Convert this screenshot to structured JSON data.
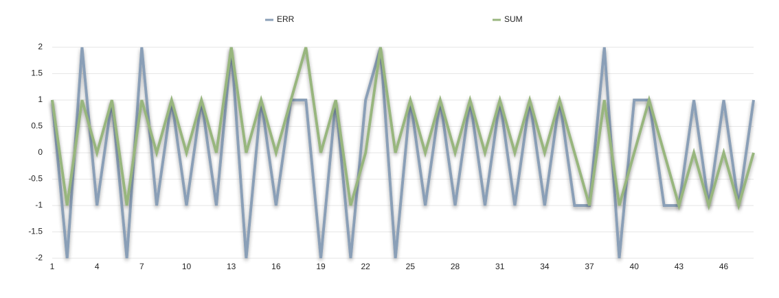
{
  "chart_data": {
    "type": "line",
    "x": [
      1,
      2,
      3,
      4,
      5,
      6,
      7,
      8,
      9,
      10,
      11,
      12,
      13,
      14,
      15,
      16,
      17,
      18,
      19,
      20,
      21,
      22,
      23,
      24,
      25,
      26,
      27,
      28,
      29,
      30,
      31,
      32,
      33,
      34,
      35,
      36,
      37,
      38,
      39,
      40,
      41,
      42,
      43,
      44,
      45,
      46,
      47,
      48
    ],
    "series": [
      {
        "name": "ERR",
        "color": "#8a9fb7",
        "values": [
          1,
          -2,
          2,
          -1,
          1,
          -2,
          2,
          -1,
          1,
          -1,
          1,
          -1,
          2,
          -2,
          1,
          -1,
          1,
          1,
          -2,
          1,
          -2,
          1,
          2,
          -2,
          1,
          -1,
          1,
          -1,
          1,
          -1,
          1,
          -1,
          1,
          -1,
          1,
          -1,
          -1,
          2,
          -2,
          1,
          1,
          -1,
          -1,
          1,
          -1,
          1,
          -1,
          1
        ]
      },
      {
        "name": "SUM",
        "color": "#98b67e",
        "values": [
          1,
          -1,
          1,
          0,
          1,
          -1,
          1,
          0,
          1,
          0,
          1,
          0,
          2,
          0,
          1,
          0,
          1,
          2,
          0,
          1,
          -1,
          0,
          2,
          0,
          1,
          0,
          1,
          0,
          1,
          0,
          1,
          0,
          1,
          0,
          1,
          0,
          -1,
          1,
          -1,
          0,
          1,
          0,
          -1,
          0,
          -1,
          0,
          -1,
          0
        ]
      }
    ],
    "xlim": [
      1,
      48
    ],
    "xticks": [
      1,
      4,
      7,
      10,
      13,
      16,
      19,
      22,
      25,
      28,
      31,
      34,
      37,
      40,
      43,
      46
    ],
    "ylim": [
      -2,
      2
    ],
    "yticks": [
      -2,
      -1.5,
      -1,
      -0.5,
      0,
      0.5,
      1,
      1.5,
      2
    ],
    "grid": true,
    "legend": "top"
  }
}
